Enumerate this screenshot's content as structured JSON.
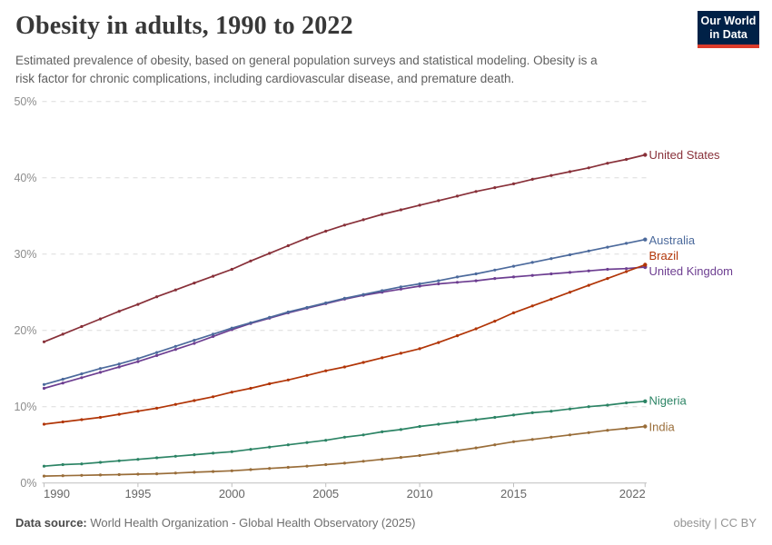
{
  "header": {
    "title": "Obesity in adults, 1990 to 2022",
    "subtitle_line1": "Estimated prevalence of obesity, based on general population surveys and statistical modeling. Obesity is a",
    "subtitle_line2": "risk factor for chronic complications, including cardiovascular disease, and premature death.",
    "logo_line1": "Our World",
    "logo_line2": "in Data",
    "logo_bg_color": "#002147",
    "logo_accent_color": "#DC3B2B"
  },
  "footer": {
    "datasource_label": "Data source:",
    "datasource_text": " World Health Organization - Global Health Observatory (2025)",
    "right_text": "obesity | CC BY"
  },
  "chart_data": {
    "type": "line",
    "title": "Obesity in adults, 1990 to 2022",
    "ylabel": "",
    "xlabel": "",
    "unit": "%",
    "x_start": 1990,
    "x_end": 2022,
    "x_ticks": [
      1990,
      1995,
      2000,
      2005,
      2010,
      2015,
      2022
    ],
    "y_ticks": [
      0,
      10,
      20,
      30,
      40,
      50
    ],
    "ylim": [
      0,
      50
    ],
    "grid": "dashed-horizontal",
    "legend_position": "right-end-labels",
    "draw_order": [
      "United Kingdom",
      "Australia",
      "Brazil",
      "United States",
      "Nigeria",
      "India"
    ],
    "series": [
      {
        "name": "United States",
        "color": "#883039",
        "label_value": 43.0,
        "values": [
          18.5,
          19.5,
          20.5,
          21.5,
          22.5,
          23.4,
          24.4,
          25.3,
          26.2,
          27.1,
          28.0,
          29.1,
          30.1,
          31.1,
          32.1,
          33.0,
          33.8,
          34.5,
          35.2,
          35.8,
          36.4,
          37.0,
          37.6,
          38.2,
          38.7,
          39.2,
          39.8,
          40.3,
          40.8,
          41.3,
          41.9,
          42.4,
          43.0
        ]
      },
      {
        "name": "Australia",
        "color": "#4C6A9C",
        "label_value": 31.85,
        "values": [
          12.9,
          13.6,
          14.3,
          15.0,
          15.6,
          16.3,
          17.1,
          17.9,
          18.7,
          19.5,
          20.3,
          21.0,
          21.7,
          22.4,
          23.0,
          23.6,
          24.2,
          24.7,
          25.2,
          25.7,
          26.1,
          26.5,
          27.0,
          27.4,
          27.9,
          28.4,
          28.9,
          29.4,
          29.9,
          30.4,
          30.9,
          31.4,
          31.9
        ]
      },
      {
        "name": "Brazil",
        "color": "#B13507",
        "label_value": 29.8,
        "values": [
          7.7,
          8.0,
          8.3,
          8.6,
          9.0,
          9.4,
          9.8,
          10.3,
          10.8,
          11.3,
          11.9,
          12.4,
          13.0,
          13.5,
          14.1,
          14.7,
          15.2,
          15.8,
          16.4,
          17.0,
          17.6,
          18.4,
          19.3,
          20.2,
          21.2,
          22.3,
          23.2,
          24.1,
          25.0,
          25.9,
          26.8,
          27.7,
          28.6
        ]
      },
      {
        "name": "United Kingdom",
        "color": "#6D3E91",
        "label_value": 27.8,
        "values": [
          12.4,
          13.1,
          13.8,
          14.5,
          15.2,
          15.9,
          16.7,
          17.5,
          18.3,
          19.2,
          20.1,
          20.9,
          21.6,
          22.3,
          22.9,
          23.5,
          24.1,
          24.6,
          25.0,
          25.4,
          25.8,
          26.1,
          26.3,
          26.5,
          26.8,
          27.0,
          27.2,
          27.4,
          27.6,
          27.8,
          28.0,
          28.1,
          28.3
        ]
      },
      {
        "name": "Nigeria",
        "color": "#2C8465",
        "label_value": 10.8,
        "values": [
          2.2,
          2.4,
          2.5,
          2.7,
          2.9,
          3.1,
          3.3,
          3.5,
          3.7,
          3.9,
          4.1,
          4.4,
          4.7,
          5.0,
          5.3,
          5.6,
          6.0,
          6.3,
          6.7,
          7.0,
          7.4,
          7.7,
          8.0,
          8.3,
          8.6,
          8.9,
          9.2,
          9.4,
          9.7,
          10.0,
          10.2,
          10.5,
          10.7
        ]
      },
      {
        "name": "India",
        "color": "#996D39",
        "label_value": 7.35,
        "values": [
          0.9,
          0.95,
          1.0,
          1.05,
          1.1,
          1.15,
          1.2,
          1.3,
          1.4,
          1.5,
          1.6,
          1.75,
          1.9,
          2.05,
          2.2,
          2.4,
          2.6,
          2.85,
          3.1,
          3.35,
          3.6,
          3.9,
          4.25,
          4.6,
          5.0,
          5.4,
          5.7,
          6.0,
          6.3,
          6.6,
          6.9,
          7.15,
          7.4
        ]
      }
    ]
  }
}
